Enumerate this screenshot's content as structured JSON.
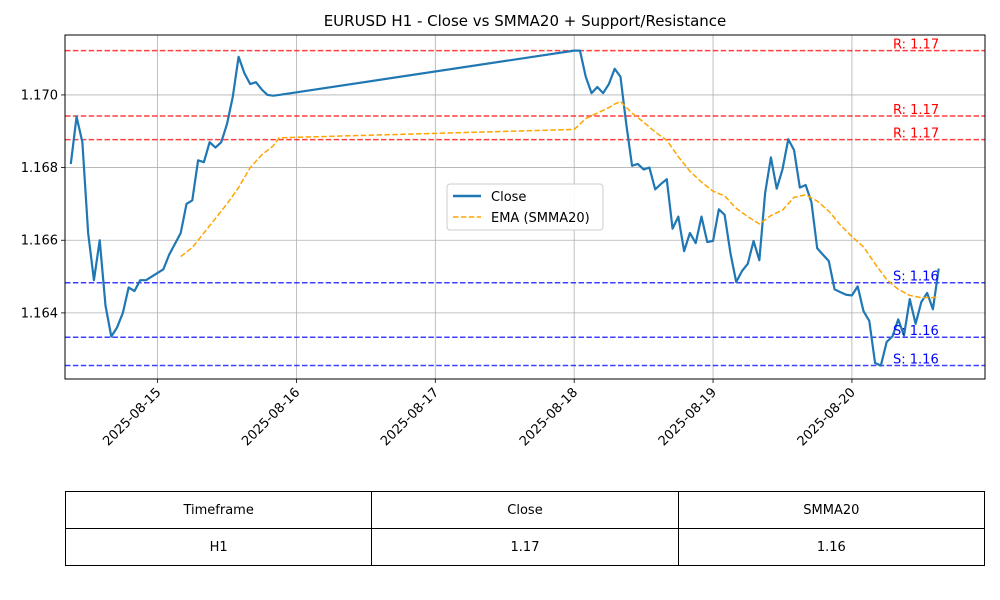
{
  "chart_data": {
    "type": "line",
    "title": "EURUSD H1 - Close vs SMMA20 + Support/Resistance",
    "xlabel": "",
    "ylabel": "",
    "x_ticks": [
      "2025-08-15",
      "2025-08-16",
      "2025-08-17",
      "2025-08-18",
      "2025-08-19",
      "2025-08-20"
    ],
    "y_ticks": [
      "1.164",
      "1.166",
      "1.168",
      "1.170"
    ],
    "x_range": [
      "2025-08-14 08:00",
      "2025-08-20 23:00"
    ],
    "ylim": [
      1.16218,
      1.17165
    ],
    "grid": true,
    "legend_position": "center",
    "series": [
      {
        "name": "Close",
        "color": "#1f77b4",
        "style": "solid",
        "points": [
          [
            "2025-08-14 09:00",
            1.1681
          ],
          [
            "2025-08-14 10:00",
            1.1694
          ],
          [
            "2025-08-14 11:00",
            1.1687
          ],
          [
            "2025-08-14 12:00",
            1.1662
          ],
          [
            "2025-08-14 13:00",
            1.1649
          ],
          [
            "2025-08-14 14:00",
            1.166
          ],
          [
            "2025-08-14 15:00",
            1.1642
          ],
          [
            "2025-08-14 16:00",
            1.16335
          ],
          [
            "2025-08-14 17:00",
            1.1636
          ],
          [
            "2025-08-14 18:00",
            1.164
          ],
          [
            "2025-08-14 19:00",
            1.1647
          ],
          [
            "2025-08-14 20:00",
            1.1646
          ],
          [
            "2025-08-14 21:00",
            1.1649
          ],
          [
            "2025-08-14 22:00",
            1.1649
          ],
          [
            "2025-08-14 23:00",
            1.165
          ],
          [
            "2025-08-15 00:00",
            1.1651
          ],
          [
            "2025-08-15 01:00",
            1.1652
          ],
          [
            "2025-08-15 02:00",
            1.1656
          ],
          [
            "2025-08-15 03:00",
            1.1659
          ],
          [
            "2025-08-15 04:00",
            1.1662
          ],
          [
            "2025-08-15 05:00",
            1.167
          ],
          [
            "2025-08-15 06:00",
            1.1671
          ],
          [
            "2025-08-15 07:00",
            1.1682
          ],
          [
            "2025-08-15 08:00",
            1.16815
          ],
          [
            "2025-08-15 09:00",
            1.1687
          ],
          [
            "2025-08-15 10:00",
            1.16855
          ],
          [
            "2025-08-15 11:00",
            1.1687
          ],
          [
            "2025-08-15 12:00",
            1.1692
          ],
          [
            "2025-08-15 13:00",
            1.16995
          ],
          [
            "2025-08-15 14:00",
            1.17105
          ],
          [
            "2025-08-15 15:00",
            1.1706
          ],
          [
            "2025-08-15 16:00",
            1.1703
          ],
          [
            "2025-08-15 17:00",
            1.17035
          ],
          [
            "2025-08-15 18:00",
            1.17015
          ],
          [
            "2025-08-15 19:00",
            1.17
          ],
          [
            "2025-08-15 20:00",
            1.16998
          ],
          [
            "2025-08-15 21:00",
            1.17
          ],
          [
            "2025-08-18 00:00",
            1.17122
          ],
          [
            "2025-08-18 01:00",
            1.17122
          ],
          [
            "2025-08-18 02:00",
            1.1705
          ],
          [
            "2025-08-18 03:00",
            1.17005
          ],
          [
            "2025-08-18 04:00",
            1.17022
          ],
          [
            "2025-08-18 05:00",
            1.17005
          ],
          [
            "2025-08-18 06:00",
            1.1703
          ],
          [
            "2025-08-18 07:00",
            1.17072
          ],
          [
            "2025-08-18 08:00",
            1.1705
          ],
          [
            "2025-08-18 09:00",
            1.1692
          ],
          [
            "2025-08-18 10:00",
            1.16805
          ],
          [
            "2025-08-18 11:00",
            1.1681
          ],
          [
            "2025-08-18 12:00",
            1.16795
          ],
          [
            "2025-08-18 13:00",
            1.168
          ],
          [
            "2025-08-18 14:00",
            1.1674
          ],
          [
            "2025-08-18 15:00",
            1.16755
          ],
          [
            "2025-08-18 16:00",
            1.16768
          ],
          [
            "2025-08-18 17:00",
            1.16632
          ],
          [
            "2025-08-18 18:00",
            1.16665
          ],
          [
            "2025-08-18 19:00",
            1.1657
          ],
          [
            "2025-08-18 20:00",
            1.1662
          ],
          [
            "2025-08-18 21:00",
            1.16592
          ],
          [
            "2025-08-18 22:00",
            1.16665
          ],
          [
            "2025-08-18 23:00",
            1.16595
          ],
          [
            "2025-08-19 00:00",
            1.16598
          ],
          [
            "2025-08-19 01:00",
            1.16685
          ],
          [
            "2025-08-19 02:00",
            1.1667
          ],
          [
            "2025-08-19 03:00",
            1.16565
          ],
          [
            "2025-08-19 04:00",
            1.16485
          ],
          [
            "2025-08-19 05:00",
            1.16515
          ],
          [
            "2025-08-19 06:00",
            1.16535
          ],
          [
            "2025-08-19 07:00",
            1.16598
          ],
          [
            "2025-08-19 08:00",
            1.16545
          ],
          [
            "2025-08-19 09:00",
            1.1673
          ],
          [
            "2025-08-19 10:00",
            1.16828
          ],
          [
            "2025-08-19 11:00",
            1.16742
          ],
          [
            "2025-08-19 12:00",
            1.16795
          ],
          [
            "2025-08-19 13:00",
            1.16878
          ],
          [
            "2025-08-19 14:00",
            1.16848
          ],
          [
            "2025-08-19 15:00",
            1.16745
          ],
          [
            "2025-08-19 16:00",
            1.16752
          ],
          [
            "2025-08-19 17:00",
            1.16705
          ],
          [
            "2025-08-19 18:00",
            1.16578
          ],
          [
            "2025-08-19 19:00",
            1.1656
          ],
          [
            "2025-08-19 20:00",
            1.16543
          ],
          [
            "2025-08-19 21:00",
            1.16465
          ],
          [
            "2025-08-19 22:00",
            1.16457
          ],
          [
            "2025-08-19 23:00",
            1.1645
          ],
          [
            "2025-08-20 00:00",
            1.16448
          ],
          [
            "2025-08-20 01:00",
            1.16473
          ],
          [
            "2025-08-20 02:00",
            1.16405
          ],
          [
            "2025-08-20 03:00",
            1.16378
          ],
          [
            "2025-08-20 04:00",
            1.16262
          ],
          [
            "2025-08-20 05:00",
            1.16255
          ],
          [
            "2025-08-20 06:00",
            1.1632
          ],
          [
            "2025-08-20 07:00",
            1.16335
          ],
          [
            "2025-08-20 08:00",
            1.16382
          ],
          [
            "2025-08-20 09:00",
            1.16338
          ],
          [
            "2025-08-20 10:00",
            1.16438
          ],
          [
            "2025-08-20 11:00",
            1.1637
          ],
          [
            "2025-08-20 12:00",
            1.1643
          ],
          [
            "2025-08-20 13:00",
            1.16455
          ],
          [
            "2025-08-20 14:00",
            1.1641
          ],
          [
            "2025-08-20 15:00",
            1.16522
          ]
        ]
      },
      {
        "name": "EMA (SMMA20)",
        "color": "#ffa500",
        "style": "dashed",
        "points": [
          [
            "2025-08-15 04:00",
            1.16555
          ],
          [
            "2025-08-15 06:00",
            1.1658
          ],
          [
            "2025-08-15 08:00",
            1.1662
          ],
          [
            "2025-08-15 10:00",
            1.1666
          ],
          [
            "2025-08-15 12:00",
            1.167
          ],
          [
            "2025-08-15 14:00",
            1.16745
          ],
          [
            "2025-08-15 16:00",
            1.168
          ],
          [
            "2025-08-15 18:00",
            1.16835
          ],
          [
            "2025-08-15 20:00",
            1.1686
          ],
          [
            "2025-08-15 21:00",
            1.16882
          ],
          [
            "2025-08-18 00:00",
            1.16905
          ],
          [
            "2025-08-18 02:00",
            1.16935
          ],
          [
            "2025-08-18 04:00",
            1.1695
          ],
          [
            "2025-08-18 06:00",
            1.16965
          ],
          [
            "2025-08-18 07:00",
            1.16975
          ],
          [
            "2025-08-18 08:00",
            1.16982
          ],
          [
            "2025-08-18 10:00",
            1.1695
          ],
          [
            "2025-08-18 12:00",
            1.16925
          ],
          [
            "2025-08-18 14:00",
            1.16898
          ],
          [
            "2025-08-18 16:00",
            1.16875
          ],
          [
            "2025-08-18 18:00",
            1.1683
          ],
          [
            "2025-08-18 20:00",
            1.1679
          ],
          [
            "2025-08-18 22:00",
            1.1676
          ],
          [
            "2025-08-19 00:00",
            1.16735
          ],
          [
            "2025-08-19 02:00",
            1.16722
          ],
          [
            "2025-08-19 04:00",
            1.16688
          ],
          [
            "2025-08-19 06:00",
            1.16665
          ],
          [
            "2025-08-19 08:00",
            1.16645
          ],
          [
            "2025-08-19 10:00",
            1.16668
          ],
          [
            "2025-08-19 12:00",
            1.16683
          ],
          [
            "2025-08-19 14:00",
            1.16718
          ],
          [
            "2025-08-19 16:00",
            1.16725
          ],
          [
            "2025-08-19 18:00",
            1.16708
          ],
          [
            "2025-08-19 20:00",
            1.1668
          ],
          [
            "2025-08-19 22:00",
            1.16642
          ],
          [
            "2025-08-20 00:00",
            1.1661
          ],
          [
            "2025-08-20 02:00",
            1.16582
          ],
          [
            "2025-08-20 04:00",
            1.16535
          ],
          [
            "2025-08-20 06:00",
            1.16492
          ],
          [
            "2025-08-20 08:00",
            1.16465
          ],
          [
            "2025-08-20 10:00",
            1.16448
          ],
          [
            "2025-08-20 12:00",
            1.16442
          ],
          [
            "2025-08-20 14:00",
            1.16442
          ],
          [
            "2025-08-20 15:00",
            1.16445
          ]
        ]
      }
    ],
    "resistance_levels": [
      {
        "value": 1.17122,
        "label": "R: 1.17"
      },
      {
        "value": 1.16942,
        "label": "R: 1.17"
      },
      {
        "value": 1.16877,
        "label": "R: 1.17"
      }
    ],
    "support_levels": [
      {
        "value": 1.16483,
        "label": "S: 1.16"
      },
      {
        "value": 1.16333,
        "label": "S: 1.16"
      },
      {
        "value": 1.16255,
        "label": "S: 1.16"
      }
    ],
    "resistance_color": "#ff0000",
    "support_color": "#0000ff"
  },
  "table": {
    "headers": [
      "Timeframe",
      "Close",
      "SMMA20"
    ],
    "row": [
      "H1",
      "1.17",
      "1.16"
    ]
  }
}
